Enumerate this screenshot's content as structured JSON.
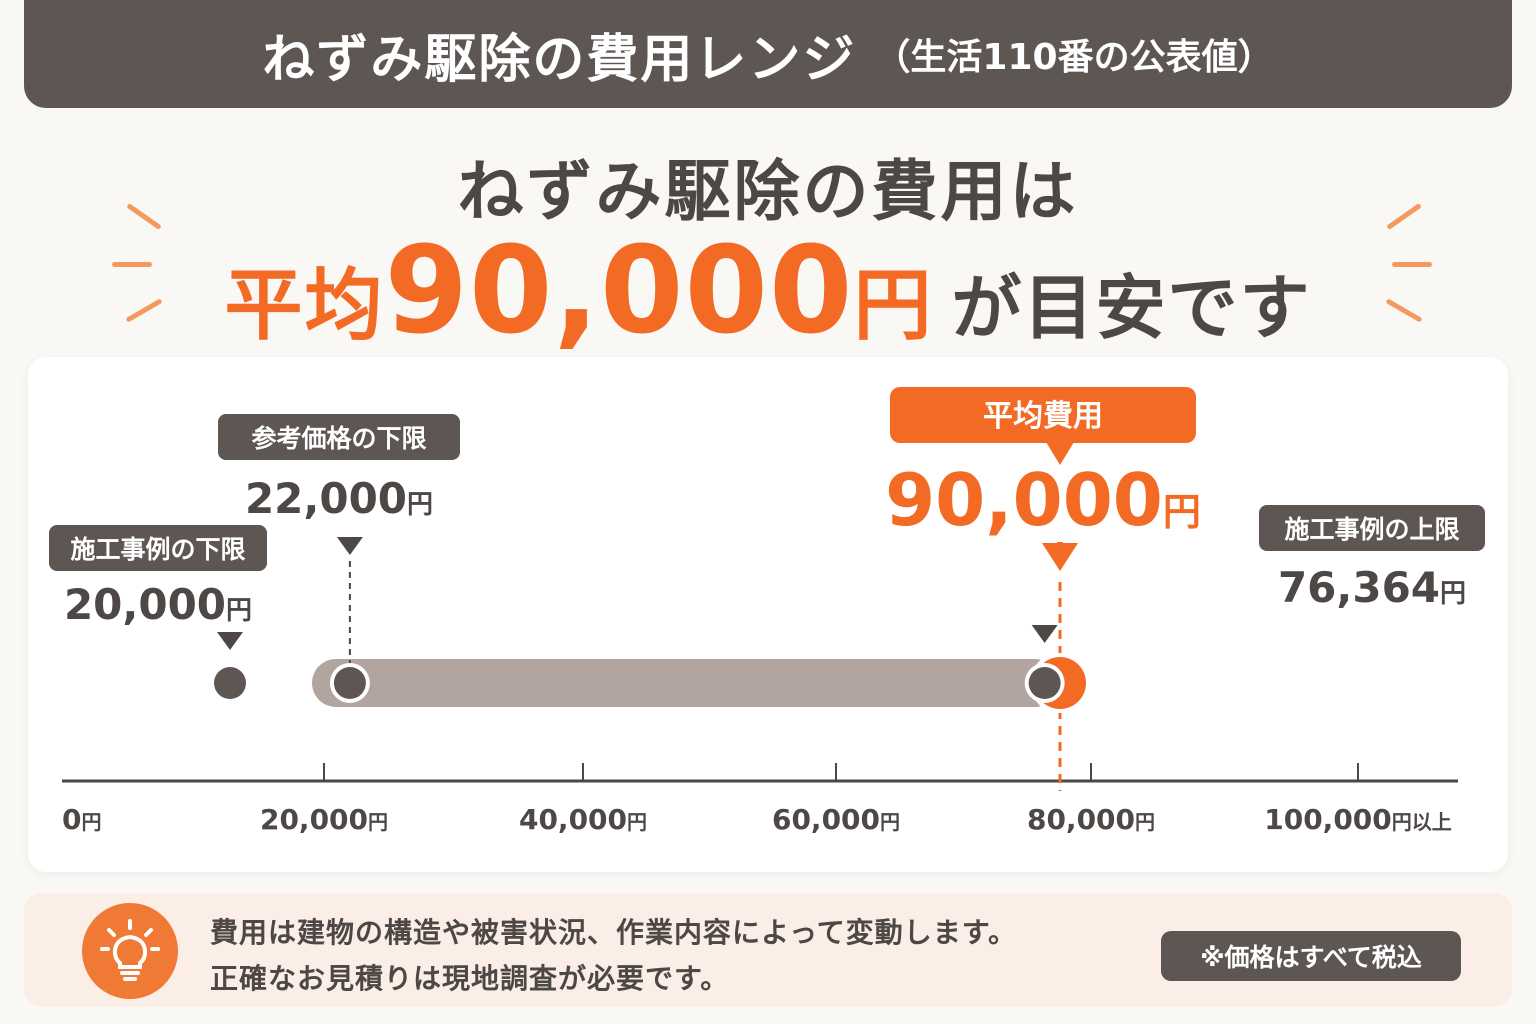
{
  "header": {
    "title": "ねずみ駆除の費用レンジ",
    "subtitle": "（生活110番の公表値）"
  },
  "headline": {
    "line1": "ねずみ駆除の費用は",
    "prefix": "平均",
    "amount": "90,000",
    "unit": "円",
    "suffix": "が目安です"
  },
  "colors": {
    "accent": "#f26a24",
    "dark": "#5e5653",
    "bar": "#b2a49f",
    "background": "#faf8f5"
  },
  "chart_data": {
    "type": "range",
    "xlim": [
      0,
      100000
    ],
    "x_ticks": [
      {
        "value": 0,
        "label": "0",
        "unit": "円"
      },
      {
        "value": 20000,
        "label": "20,000",
        "unit": "円"
      },
      {
        "value": 40000,
        "label": "40,000",
        "unit": "円"
      },
      {
        "value": 60000,
        "label": "60,000",
        "unit": "円"
      },
      {
        "value": 80000,
        "label": "80,000",
        "unit": "円"
      },
      {
        "value": 100000,
        "label": "100,000",
        "unit": "円以上"
      }
    ],
    "range": {
      "min": 20000,
      "max": 76364
    },
    "markers": [
      {
        "label": "施工事例の下限",
        "value": 20000,
        "value_text": "20,000",
        "unit": "円"
      },
      {
        "label": "参考価格の下限",
        "value": 22000,
        "value_text": "22,000",
        "unit": "円"
      },
      {
        "label": "平均費用",
        "value": 90000,
        "value_text": "90,000",
        "unit": "円",
        "highlight": true
      },
      {
        "label": "施工事例の上限",
        "value": 76364,
        "value_text": "76,364",
        "unit": "円"
      }
    ]
  },
  "note": {
    "icon": "lightbulb-icon",
    "line1": "費用は建物の構造や被害状況、作業内容によって変動します。",
    "line2": "正確なお見積りは現地調査が必要です。",
    "badge": "※価格はすべて税込"
  }
}
